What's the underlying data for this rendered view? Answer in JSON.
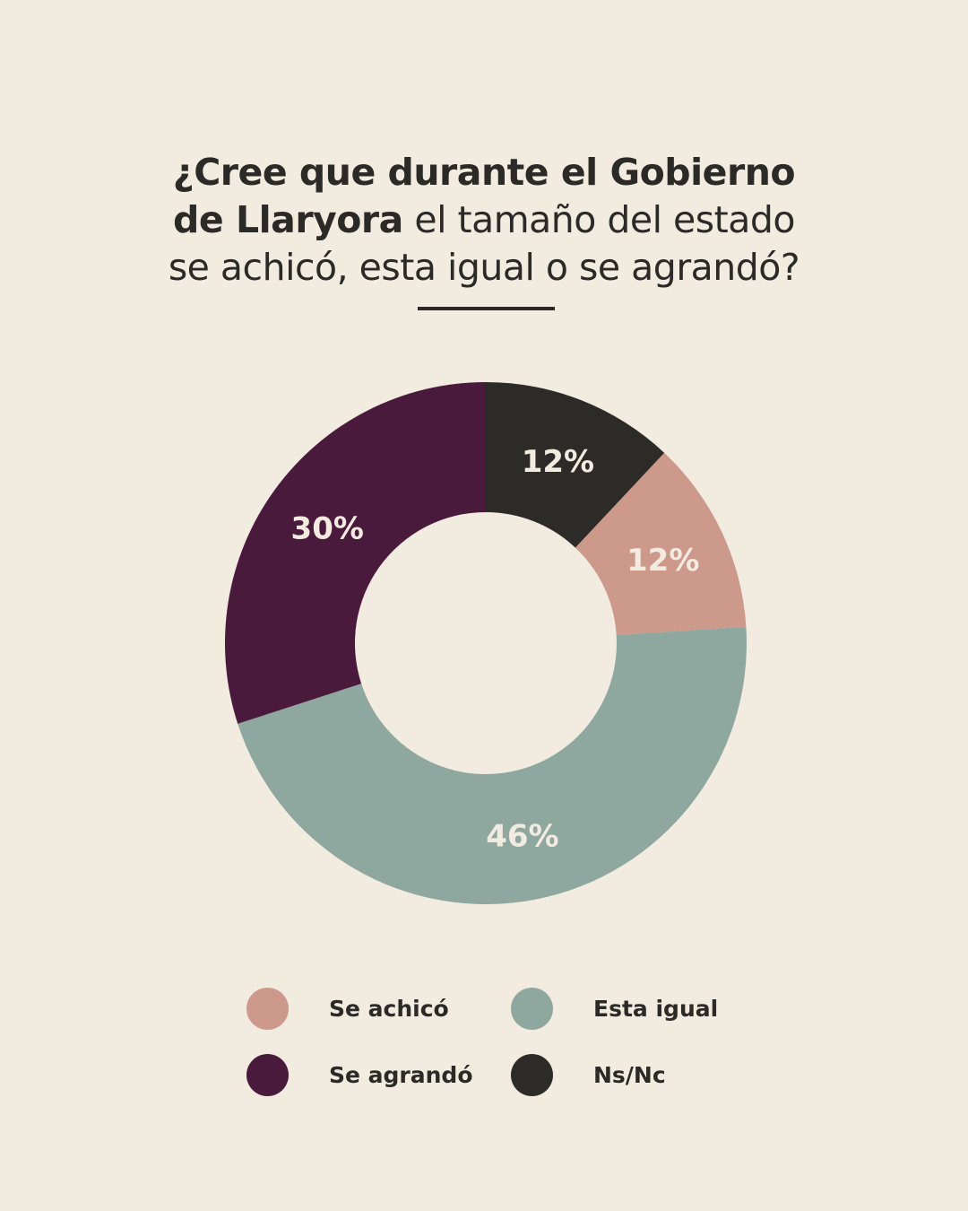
{
  "title": {
    "line1_bold": "¿Cree que durante el Gobierno",
    "line2_bold": "de Llaryora",
    "line2_rest": " el tamaño del estado",
    "line3": "se achicó, esta igual o se agrandó?"
  },
  "colors": {
    "background": "#f2ebe0",
    "se_achico": "#cc998b",
    "esta_igual": "#8fa89f",
    "se_agrando": "#4a1a3c",
    "ns_nc": "#2c2b27",
    "text": "#2b2a27"
  },
  "legend": [
    {
      "label": "Se achicó",
      "color": "#cc998b"
    },
    {
      "label": "Esta igual",
      "color": "#8fa89f"
    },
    {
      "label": "Se agrandó",
      "color": "#4a1a3c"
    },
    {
      "label": "Ns/Nc",
      "color": "#2c2b27"
    }
  ],
  "chart_data": {
    "type": "pie",
    "variant": "donut",
    "title": "¿Cree que durante el Gobierno de Llaryora el tamaño del estado se achicó, esta igual o se agrandó?",
    "categories": [
      "Ns/Nc",
      "Se achicó",
      "Esta igual",
      "Se agrandó"
    ],
    "values": [
      12,
      12,
      46,
      30
    ],
    "labels": [
      "12%",
      "12%",
      "46%",
      "30%"
    ],
    "colors": [
      "#2c2b27",
      "#cc998b",
      "#8fa89f",
      "#4a1a3c"
    ],
    "start_angle_deg": 0,
    "direction": "clockwise",
    "legend_position": "bottom",
    "legend_order": [
      "Se achicó",
      "Esta igual",
      "Se agrandó",
      "Ns/Nc"
    ]
  }
}
